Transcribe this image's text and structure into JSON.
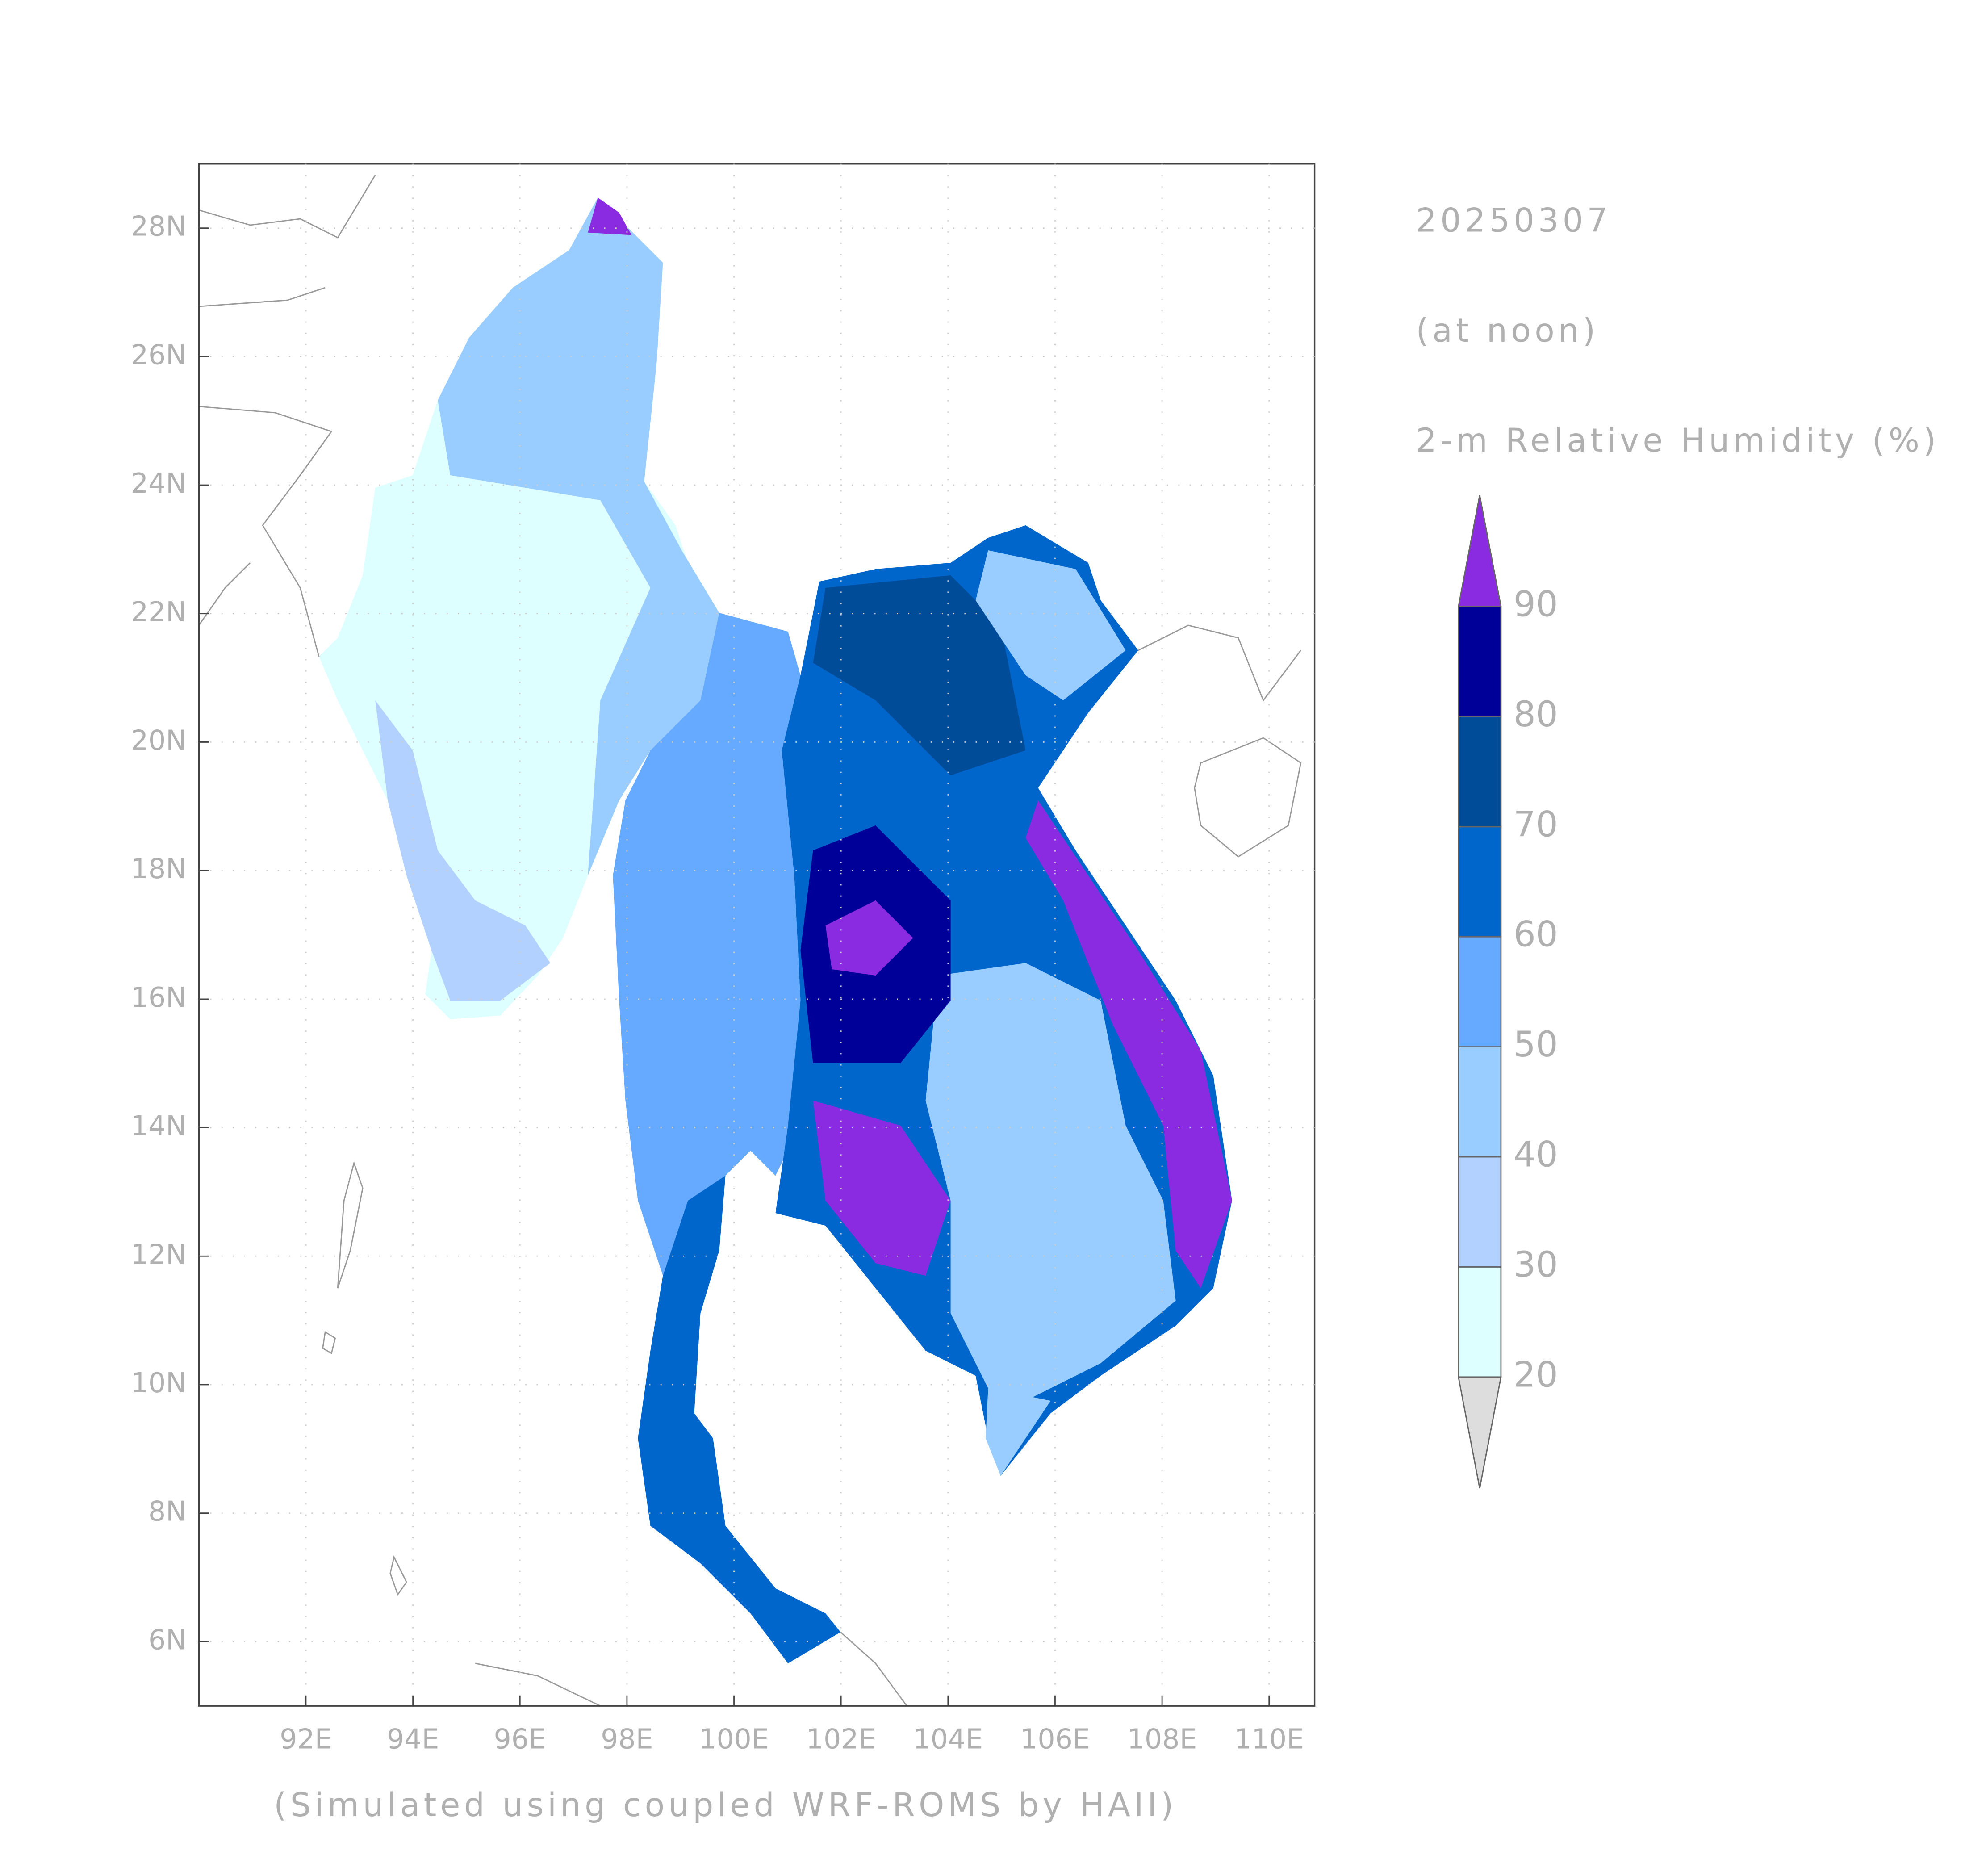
{
  "chart_data": {
    "type": "map",
    "date": "20250307",
    "time_note": "(at noon)",
    "variable": "2-m Relative Humidity (%)",
    "footer": "(Simulated using coupled WRF-ROMS by HAII)",
    "xlim": [
      90,
      110.85
    ],
    "ylim": [
      5,
      29
    ],
    "xticks": [
      {
        "value": 92,
        "label": "92E"
      },
      {
        "value": 94,
        "label": "94E"
      },
      {
        "value": 96,
        "label": "96E"
      },
      {
        "value": 98,
        "label": "98E"
      },
      {
        "value": 100,
        "label": "100E"
      },
      {
        "value": 102,
        "label": "102E"
      },
      {
        "value": 104,
        "label": "104E"
      },
      {
        "value": 106,
        "label": "106E"
      },
      {
        "value": 108,
        "label": "108E"
      },
      {
        "value": 110,
        "label": "110E"
      }
    ],
    "yticks": [
      {
        "value": 6,
        "label": "6N"
      },
      {
        "value": 8,
        "label": "8N"
      },
      {
        "value": 10,
        "label": "10N"
      },
      {
        "value": 12,
        "label": "12N"
      },
      {
        "value": 14,
        "label": "14N"
      },
      {
        "value": 16,
        "label": "16N"
      },
      {
        "value": 18,
        "label": "18N"
      },
      {
        "value": 20,
        "label": "20N"
      },
      {
        "value": 22,
        "label": "22N"
      },
      {
        "value": 24,
        "label": "24N"
      },
      {
        "value": 26,
        "label": "26N"
      },
      {
        "value": 28,
        "label": "28N"
      }
    ],
    "grid": true,
    "colorbar": {
      "levels": [
        20,
        30,
        40,
        50,
        60,
        70,
        80,
        90
      ],
      "colors": [
        "#dddddd",
        "#ddffff",
        "#b3d1ff",
        "#99ccff",
        "#66aaff",
        "#0066cc",
        "#004c99",
        "#000099",
        "#8a2be2"
      ]
    }
  }
}
